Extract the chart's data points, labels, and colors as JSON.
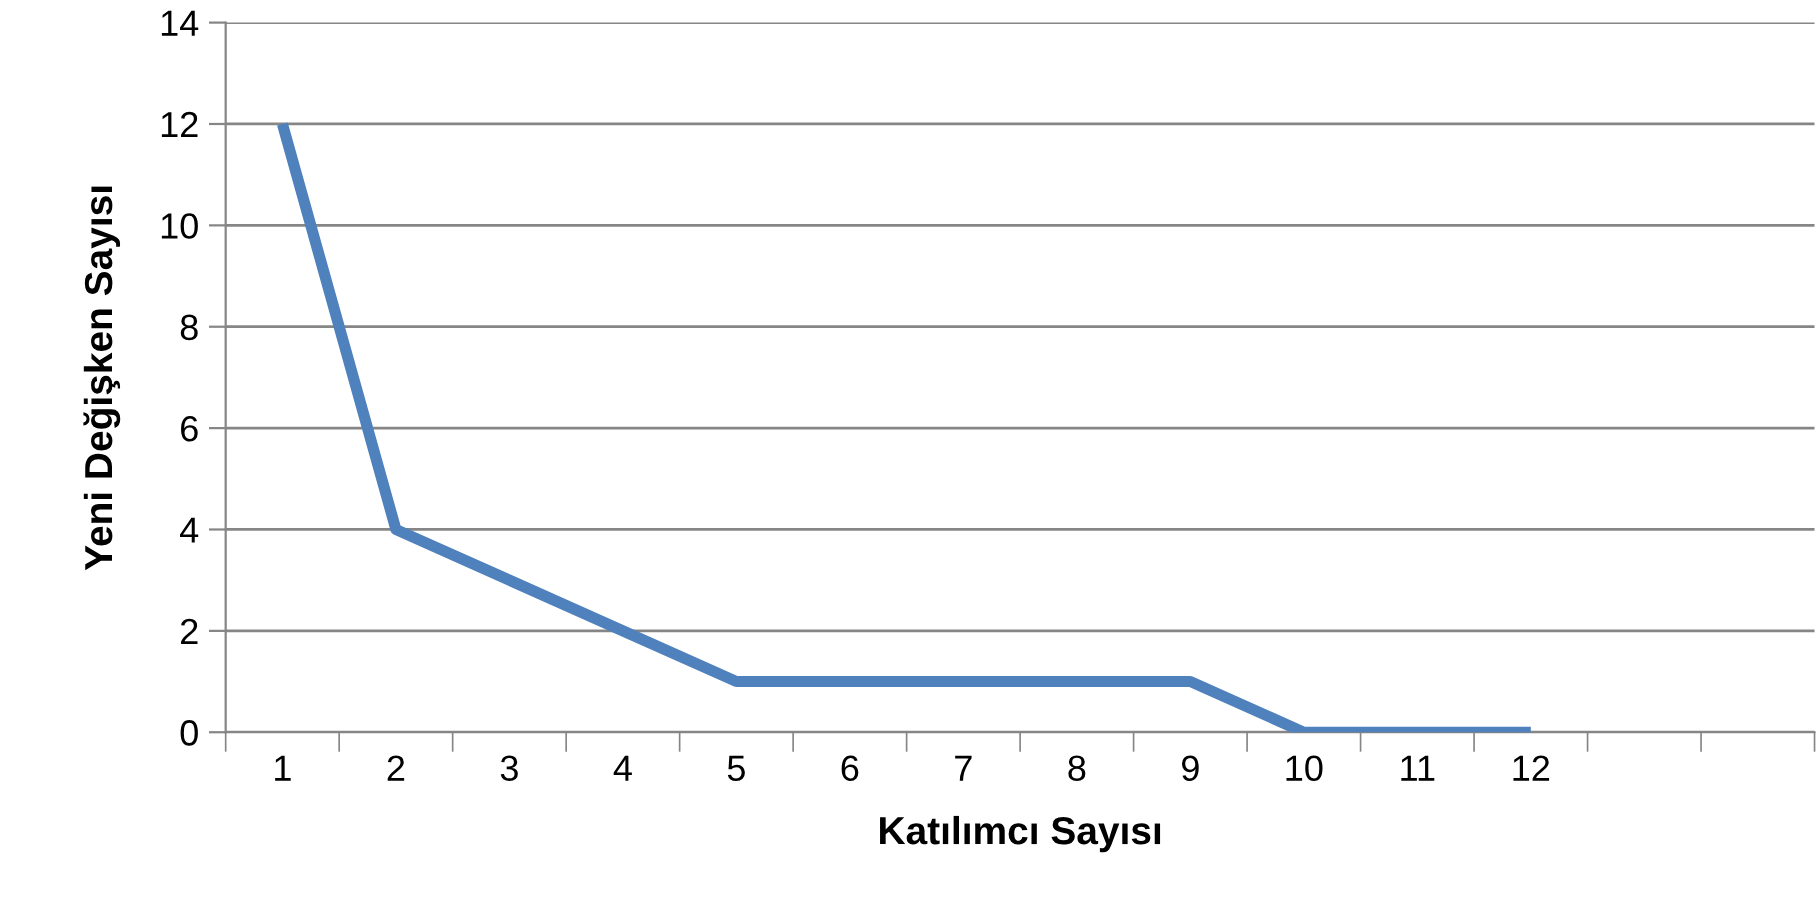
{
  "chart_data": {
    "type": "line",
    "xlabel": "Katılımcı Sayısı",
    "ylabel": "Yeni Değişken Sayısı",
    "categories": [
      "1",
      "2",
      "3",
      "4",
      "5",
      "6",
      "7",
      "8",
      "9",
      "10",
      "11",
      "12",
      null,
      null
    ],
    "series": [
      {
        "color": "#4f81bd",
        "values": [
          12,
          4,
          3,
          2,
          1,
          1,
          1,
          1,
          1,
          0,
          0,
          0,
          null,
          null
        ]
      }
    ],
    "ylim": [
      0,
      14
    ],
    "yticks": [
      0,
      2,
      4,
      6,
      8,
      10,
      12,
      14
    ],
    "grid": "y",
    "legend": false,
    "marker": "none",
    "line_style": "solid"
  }
}
